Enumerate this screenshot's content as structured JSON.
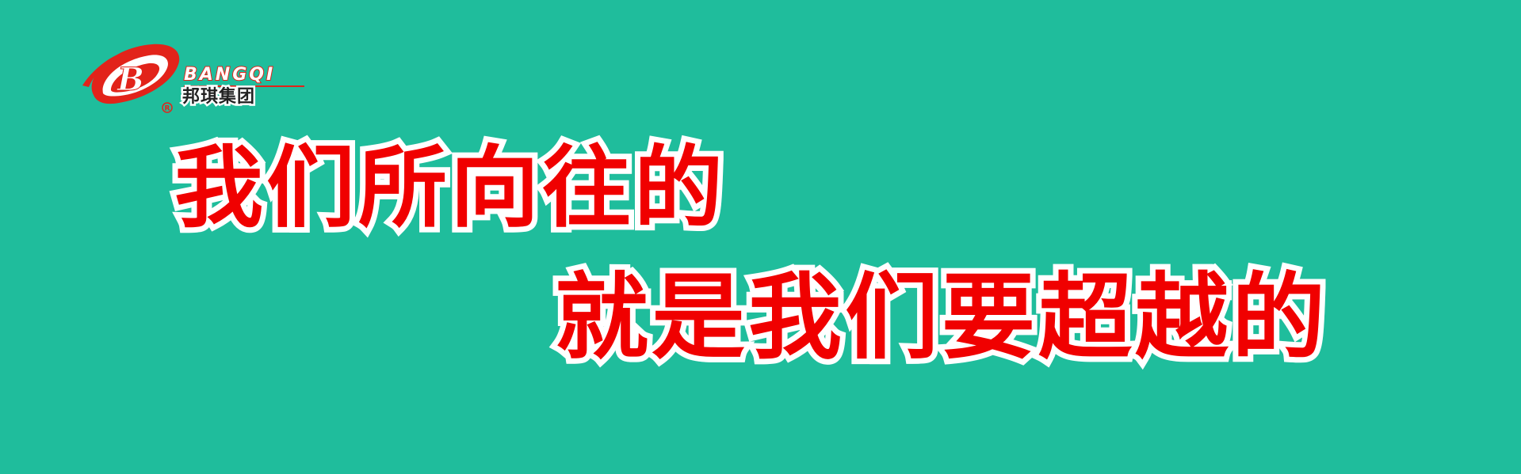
{
  "banner": {
    "background_color": "#1fbd9c",
    "accent_color": "#e2231a",
    "text_color": "#f00000",
    "outline_color": "#ffffff"
  },
  "logo": {
    "icon": "bangqi-b-swoosh-icon",
    "brand_en": "BANGQI",
    "brand_cn": "邦琪集团",
    "registered_mark": "®"
  },
  "slogan": {
    "line1": "我们所向往的",
    "line2": "就是我们要超越的"
  }
}
